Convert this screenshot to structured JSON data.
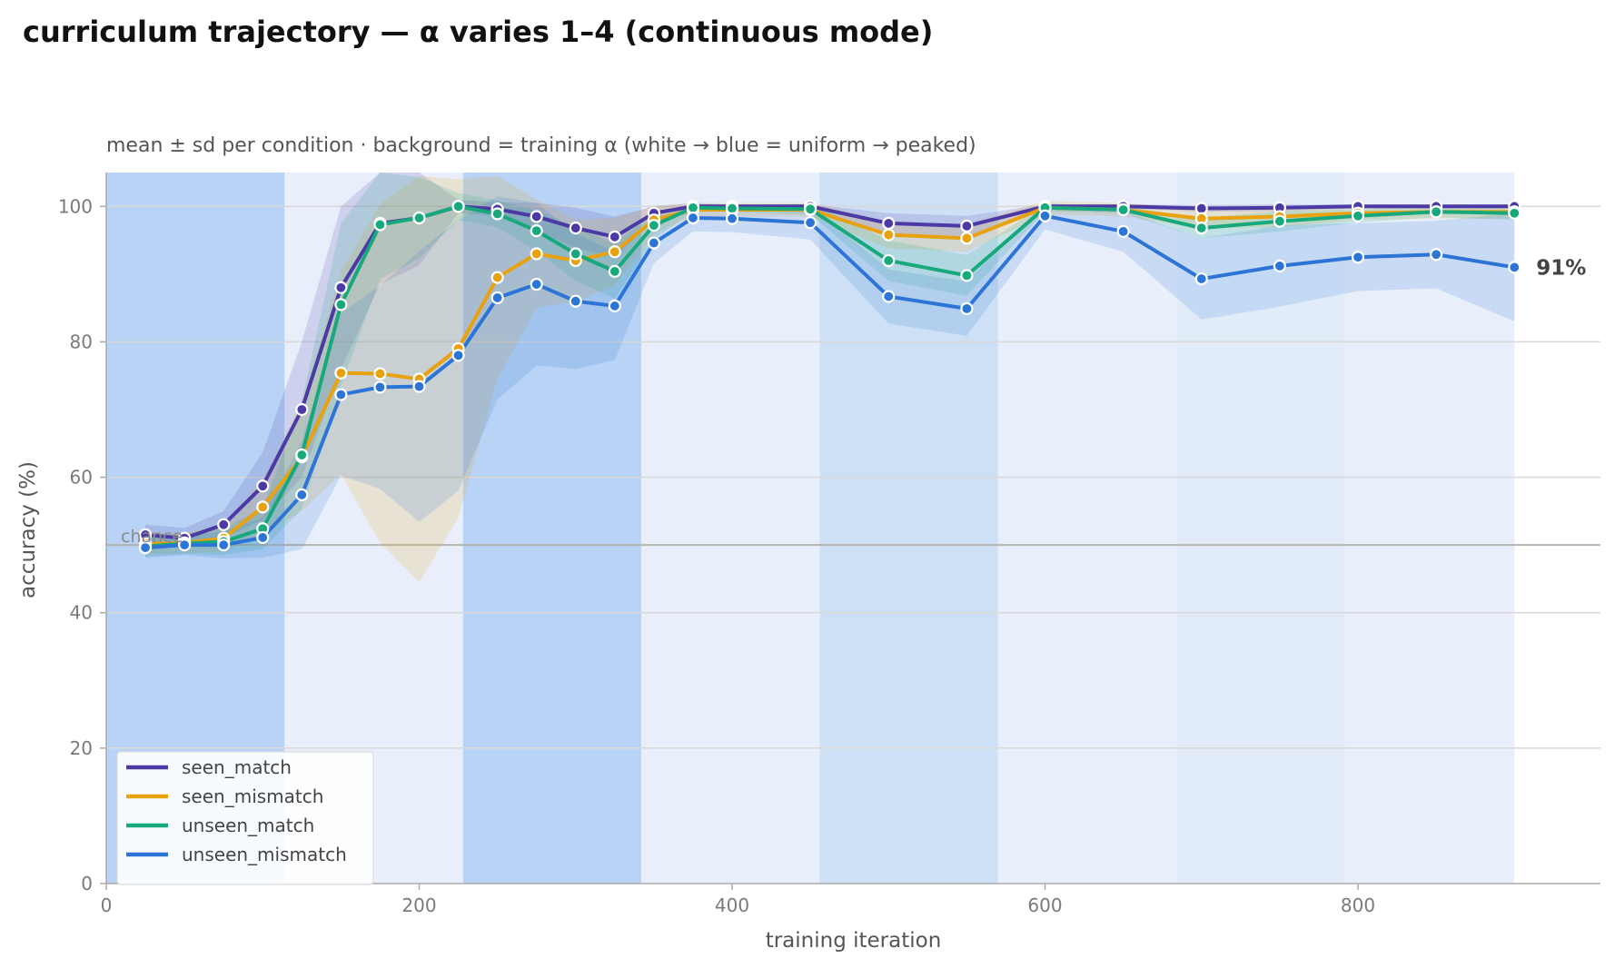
{
  "chart_data": {
    "type": "line",
    "title": "curriculum trajectory — α varies 1–4 (continuous mode)",
    "subtitle": "mean ± sd per condition · background = training α (white → blue = uniform → peaked)",
    "xlabel": "training iteration",
    "ylabel": "accuracy (%)",
    "xlim": [
      0,
      955
    ],
    "ylim": [
      0,
      105
    ],
    "xticks": [
      0,
      200,
      400,
      600,
      800
    ],
    "yticks": [
      0,
      20,
      40,
      60,
      80,
      100
    ],
    "grid": "horizontal",
    "legend_position": "bottom-left",
    "chance_level": 50,
    "chance_label": "chance",
    "end_label": "91%",
    "background_bands": [
      {
        "start": 0,
        "end": 114,
        "color": "#b8d3f5"
      },
      {
        "start": 114,
        "end": 228,
        "color": "#e8effb"
      },
      {
        "start": 228,
        "end": 342,
        "color": "#b8d3f5"
      },
      {
        "start": 342,
        "end": 456,
        "color": "#e8effb"
      },
      {
        "start": 456,
        "end": 570,
        "color": "#cde0f6"
      },
      {
        "start": 570,
        "end": 684,
        "color": "#e8effb"
      },
      {
        "start": 684,
        "end": 792,
        "color": "#e2ecf9"
      },
      {
        "start": 792,
        "end": 900,
        "color": "#e8effb"
      }
    ],
    "x": [
      25,
      50,
      75,
      100,
      125,
      150,
      175,
      200,
      225,
      250,
      275,
      300,
      325,
      350,
      375,
      400,
      450,
      500,
      550,
      600,
      650,
      700,
      750,
      800,
      850,
      900
    ],
    "series": [
      {
        "name": "seen_match",
        "color": "#4b3aa6",
        "values": [
          51.5,
          51,
          53,
          58.7,
          70,
          88,
          97.5,
          98.3,
          100,
          99.6,
          98.5,
          96.8,
          95.5,
          99,
          100,
          100,
          100,
          97.5,
          97.1,
          100,
          100,
          99.7,
          99.8,
          100,
          100,
          100
        ],
        "sd": [
          1.5,
          1.5,
          2,
          5,
          10,
          12,
          9,
          7,
          1,
          1,
          2,
          3,
          3,
          1,
          0.5,
          0.3,
          0.3,
          1.5,
          1.5,
          0.3,
          0.3,
          0.5,
          0.5,
          0.3,
          0.3,
          0.3
        ]
      },
      {
        "name": "seen_mismatch",
        "color": "#e8a10f",
        "values": [
          50.2,
          50.3,
          51,
          55.6,
          63,
          75.4,
          75.3,
          74.5,
          79,
          89.5,
          93,
          92,
          93.3,
          98,
          99.5,
          99.5,
          99.5,
          95.8,
          95.3,
          99.8,
          99.5,
          98.2,
          98.5,
          99,
          99.2,
          99.2
        ],
        "sd": [
          1.5,
          1.5,
          2,
          4,
          8,
          15,
          25,
          30,
          25,
          15,
          8,
          6,
          5,
          2,
          1,
          1,
          1,
          2,
          2,
          1,
          1,
          1.5,
          1.5,
          1,
          1,
          1
        ]
      },
      {
        "name": "unseen_match",
        "color": "#17a87b",
        "values": [
          49.8,
          50.2,
          50.5,
          52.4,
          63.3,
          85.5,
          97.3,
          98.3,
          100,
          98.9,
          96.4,
          93,
          90.4,
          97.2,
          99.8,
          99.7,
          99.6,
          92,
          89.8,
          99.8,
          99.5,
          96.8,
          97.8,
          98.6,
          99.2,
          99
        ],
        "sd": [
          1.5,
          1.5,
          2,
          3,
          8,
          12,
          8,
          6,
          2,
          2,
          3,
          4,
          4,
          2,
          0.5,
          0.5,
          0.8,
          3,
          3,
          0.5,
          0.5,
          1.5,
          1.5,
          1,
          0.8,
          1
        ]
      },
      {
        "name": "unseen_mismatch",
        "color": "#2c74d6",
        "values": [
          49.6,
          50,
          50,
          51.1,
          57.4,
          72.2,
          73.3,
          73.4,
          78,
          86.5,
          88.5,
          86,
          85.3,
          94.6,
          98.3,
          98.2,
          97.6,
          86.7,
          84.9,
          98.6,
          96.3,
          89.3,
          91.2,
          92.5,
          92.9,
          91
        ],
        "sd": [
          1.5,
          1.5,
          2,
          3,
          8,
          12,
          15,
          20,
          20,
          15,
          12,
          10,
          8,
          3,
          2,
          2,
          2.5,
          4,
          4,
          2,
          3,
          6,
          6,
          5,
          5,
          8
        ]
      }
    ]
  }
}
